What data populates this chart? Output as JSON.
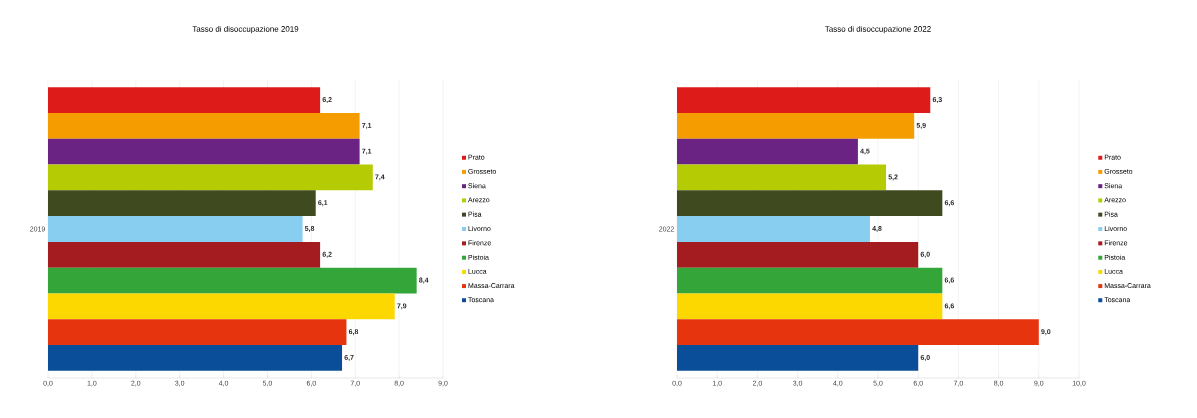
{
  "chart_data": [
    {
      "type": "bar",
      "orientation": "horizontal",
      "title": "Tasso di disoccupazione 2019",
      "categories": [
        "2019"
      ],
      "xlim": [
        0,
        9
      ],
      "xticks": [
        {
          "value": 0,
          "label": "0,0"
        },
        {
          "value": 1,
          "label": "1,0"
        },
        {
          "value": 2,
          "label": "2,0"
        },
        {
          "value": 3,
          "label": "3,0"
        },
        {
          "value": 4,
          "label": "4,0"
        },
        {
          "value": 5,
          "label": "5,0"
        },
        {
          "value": 6,
          "label": "6,0"
        },
        {
          "value": 7,
          "label": "7,0"
        },
        {
          "value": 8,
          "label": "8,0"
        },
        {
          "value": 9,
          "label": "9,0"
        }
      ],
      "grid": "x",
      "legend": "right",
      "series": [
        {
          "name": "Prato",
          "color": "#dd1c1a",
          "values": [
            6.2
          ],
          "value_labels": [
            "6,2"
          ]
        },
        {
          "name": "Grosseto",
          "color": "#f59d00",
          "values": [
            7.1
          ],
          "value_labels": [
            "7,1"
          ]
        },
        {
          "name": "Siena",
          "color": "#6a2382",
          "values": [
            7.1
          ],
          "value_labels": [
            "7,1"
          ]
        },
        {
          "name": "Arezzo",
          "color": "#b5cc05",
          "values": [
            7.4
          ],
          "value_labels": [
            "7,4"
          ]
        },
        {
          "name": "Pisa",
          "color": "#3f4a1e",
          "values": [
            6.1
          ],
          "value_labels": [
            "6,1"
          ]
        },
        {
          "name": "Livorno",
          "color": "#87cef0",
          "values": [
            5.8
          ],
          "value_labels": [
            "5,8"
          ]
        },
        {
          "name": "Firenze",
          "color": "#a41c1f",
          "values": [
            6.2
          ],
          "value_labels": [
            "6,2"
          ]
        },
        {
          "name": "Pistoia",
          "color": "#34a539",
          "values": [
            8.4
          ],
          "value_labels": [
            "8,4"
          ]
        },
        {
          "name": "Lucca",
          "color": "#fcd800",
          "values": [
            7.9
          ],
          "value_labels": [
            "7,9"
          ]
        },
        {
          "name": "Massa-Carrara",
          "color": "#e6350e",
          "values": [
            6.8
          ],
          "value_labels": [
            "6,8"
          ]
        },
        {
          "name": "Toscana",
          "color": "#0a4d98",
          "values": [
            6.7
          ],
          "value_labels": [
            "6,7"
          ]
        }
      ]
    },
    {
      "type": "bar",
      "orientation": "horizontal",
      "title": "Tasso di disoccupazione 2022",
      "categories": [
        "2022"
      ],
      "xlim": [
        0,
        10
      ],
      "xticks": [
        {
          "value": 0,
          "label": "0,0"
        },
        {
          "value": 1,
          "label": "1,0"
        },
        {
          "value": 2,
          "label": "2,0"
        },
        {
          "value": 3,
          "label": "3,0"
        },
        {
          "value": 4,
          "label": "4,0"
        },
        {
          "value": 5,
          "label": "5,0"
        },
        {
          "value": 6,
          "label": "6,0"
        },
        {
          "value": 7,
          "label": "7,0"
        },
        {
          "value": 8,
          "label": "8,0"
        },
        {
          "value": 9,
          "label": "9,0"
        },
        {
          "value": 10,
          "label": "10,0"
        }
      ],
      "grid": "x",
      "legend": "right",
      "series": [
        {
          "name": "Prato",
          "color": "#dd1c1a",
          "values": [
            6.3
          ],
          "value_labels": [
            "6,3"
          ]
        },
        {
          "name": "Grosseto",
          "color": "#f59d00",
          "values": [
            5.9
          ],
          "value_labels": [
            "5,9"
          ]
        },
        {
          "name": "Siena",
          "color": "#6a2382",
          "values": [
            4.5
          ],
          "value_labels": [
            "4,5"
          ]
        },
        {
          "name": "Arezzo",
          "color": "#b5cc05",
          "values": [
            5.2
          ],
          "value_labels": [
            "5,2"
          ]
        },
        {
          "name": "Pisa",
          "color": "#3f4a1e",
          "values": [
            6.6
          ],
          "value_labels": [
            "6,6"
          ]
        },
        {
          "name": "Livorno",
          "color": "#87cef0",
          "values": [
            4.8
          ],
          "value_labels": [
            "4,8"
          ]
        },
        {
          "name": "Firenze",
          "color": "#a41c1f",
          "values": [
            6.0
          ],
          "value_labels": [
            "6,0"
          ]
        },
        {
          "name": "Pistoia",
          "color": "#34a539",
          "values": [
            6.6
          ],
          "value_labels": [
            "6,6"
          ]
        },
        {
          "name": "Lucca",
          "color": "#fcd800",
          "values": [
            6.6
          ],
          "value_labels": [
            "6,6"
          ]
        },
        {
          "name": "Massa-Carrara",
          "color": "#e6350e",
          "values": [
            9.0
          ],
          "value_labels": [
            "9,0"
          ]
        },
        {
          "name": "Toscana",
          "color": "#0a4d98",
          "values": [
            6.0
          ],
          "value_labels": [
            "6,0"
          ]
        }
      ]
    }
  ]
}
